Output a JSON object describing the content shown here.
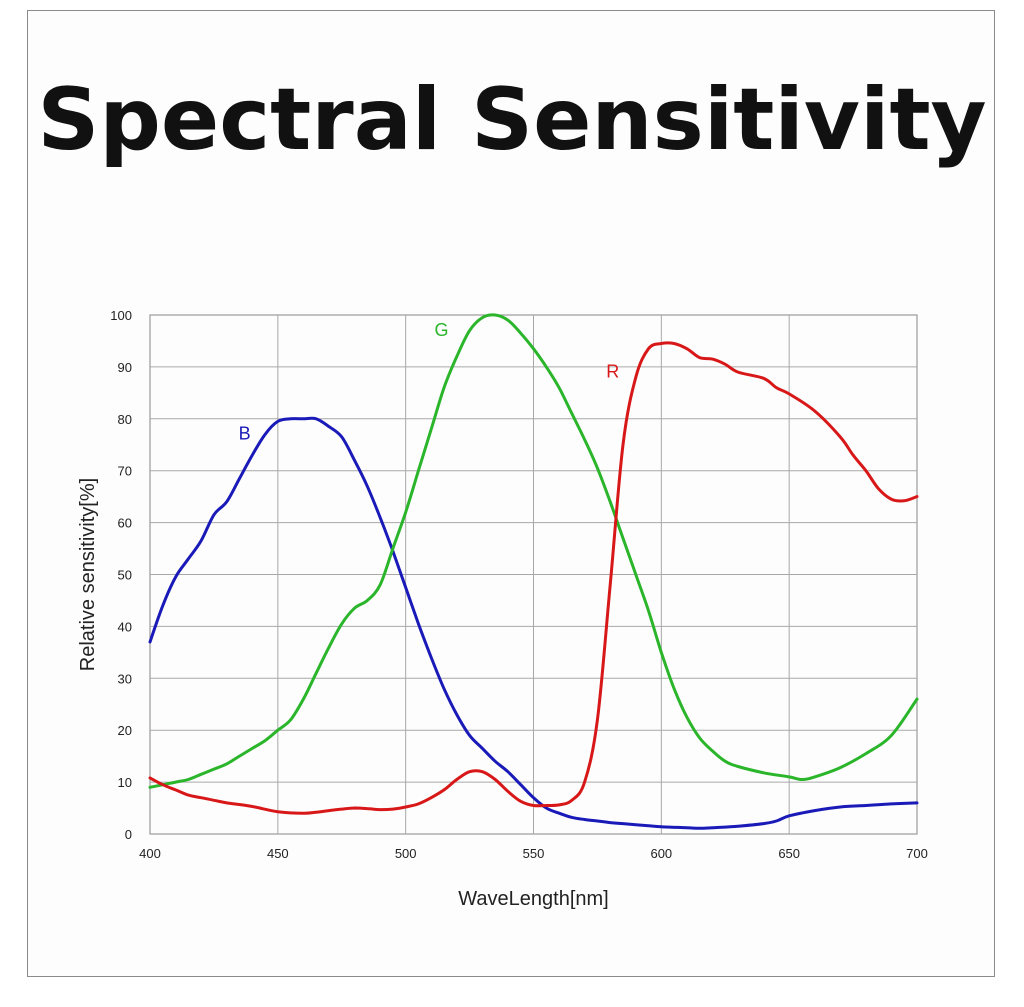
{
  "chart_data": {
    "type": "line",
    "title": "Spectral Sensitivity",
    "xlabel": "WaveLength[nm]",
    "ylabel": "Relative sensitivity[%]",
    "xlim": [
      400,
      700
    ],
    "ylim": [
      0,
      100
    ],
    "x_ticks": [
      "400",
      "450",
      "500",
      "550",
      "600",
      "650",
      "700"
    ],
    "y_ticks": [
      "0",
      "10",
      "20",
      "30",
      "40",
      "50",
      "60",
      "70",
      "80",
      "90",
      "100"
    ],
    "grid": true,
    "series": [
      {
        "name": "B",
        "color": "#1a1ab8",
        "x": [
          400,
          405,
          410,
          415,
          420,
          425,
          430,
          435,
          440,
          445,
          450,
          455,
          460,
          465,
          470,
          475,
          480,
          485,
          490,
          495,
          500,
          505,
          510,
          515,
          520,
          525,
          530,
          535,
          540,
          545,
          550,
          555,
          560,
          565,
          570,
          575,
          580,
          585,
          590,
          595,
          600,
          610,
          615,
          620,
          630,
          640,
          645,
          650,
          660,
          670,
          680,
          690,
          700
        ],
        "y": [
          37,
          44,
          49.5,
          53,
          56.5,
          61.5,
          64,
          68.5,
          73,
          77,
          79.5,
          80,
          80,
          80,
          78.5,
          76.5,
          72,
          67,
          61,
          54.5,
          47.5,
          40.5,
          34,
          28,
          23,
          19,
          16.5,
          14,
          12,
          9.5,
          7,
          5,
          4,
          3.2,
          2.8,
          2.5,
          2.2,
          2,
          1.8,
          1.6,
          1.4,
          1.2,
          1.1,
          1.2,
          1.5,
          2,
          2.5,
          3.5,
          4.5,
          5.2,
          5.5,
          5.8,
          6
        ]
      },
      {
        "name": "G",
        "color": "#2ab52a",
        "x": [
          400,
          405,
          410,
          415,
          420,
          425,
          430,
          435,
          440,
          445,
          450,
          455,
          460,
          465,
          470,
          475,
          480,
          485,
          490,
          495,
          500,
          505,
          510,
          515,
          520,
          525,
          530,
          535,
          540,
          545,
          550,
          555,
          560,
          565,
          570,
          575,
          580,
          585,
          590,
          595,
          600,
          605,
          610,
          615,
          620,
          625,
          630,
          640,
          650,
          655,
          660,
          670,
          680,
          690,
          700
        ],
        "y": [
          9,
          9.5,
          10,
          10.5,
          11.5,
          12.5,
          13.5,
          15,
          16.5,
          18,
          20,
          22,
          26,
          31,
          36,
          40.5,
          43.5,
          45,
          48,
          55,
          62,
          70,
          78,
          86,
          92,
          97,
          99.5,
          100,
          99,
          96.5,
          93.5,
          90,
          86,
          81,
          76,
          70.5,
          64,
          57,
          50,
          43,
          35,
          28,
          22.5,
          18.5,
          16,
          14,
          13,
          11.8,
          11,
          10.5,
          11,
          12.8,
          15.5,
          19,
          26
        ]
      },
      {
        "name": "R",
        "color": "#d81818",
        "x": [
          400,
          405,
          410,
          415,
          420,
          425,
          430,
          440,
          450,
          460,
          465,
          470,
          475,
          480,
          485,
          490,
          495,
          500,
          505,
          510,
          515,
          520,
          525,
          530,
          535,
          540,
          545,
          550,
          555,
          560,
          565,
          570,
          575,
          580,
          585,
          590,
          595,
          600,
          605,
          610,
          615,
          620,
          625,
          630,
          640,
          645,
          650,
          660,
          670,
          675,
          680,
          685,
          690,
          695,
          700
        ],
        "y": [
          10.8,
          9.5,
          8.5,
          7.5,
          7,
          6.5,
          6,
          5.3,
          4.3,
          4,
          4.2,
          4.5,
          4.8,
          5,
          4.9,
          4.7,
          4.8,
          5.2,
          5.8,
          7,
          8.5,
          10.5,
          12,
          12,
          10.5,
          8.2,
          6.3,
          5.5,
          5.5,
          5.6,
          6.5,
          10,
          22,
          48,
          75,
          88,
          93.5,
          94.5,
          94.5,
          93.5,
          91.8,
          91.5,
          90.5,
          89,
          87.8,
          86,
          84.8,
          81.5,
          76.5,
          73,
          70,
          66.5,
          64.5,
          64.2,
          65
        ]
      }
    ],
    "annotations": [
      {
        "text": "B",
        "x": 437,
        "y": 76,
        "color": "#1a1ab8"
      },
      {
        "text": "G",
        "x": 514,
        "y": 96,
        "color": "#2ab52a"
      },
      {
        "text": "R",
        "x": 581,
        "y": 88,
        "color": "#d81818"
      }
    ]
  }
}
